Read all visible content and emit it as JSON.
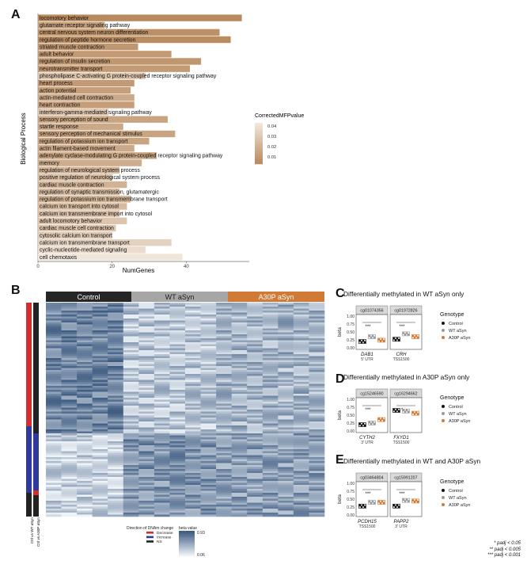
{
  "panels": {
    "a": "A",
    "b": "B",
    "c": "C",
    "d": "D",
    "e": "E"
  },
  "chart_data": [
    {
      "type": "bar",
      "panel": "A",
      "xlabel": "NumGenes",
      "ylabel": "Biological Process",
      "xticks": [
        "0",
        "20",
        "40"
      ],
      "xlim": [
        0,
        57
      ],
      "legend_title": "CorrectedMFPvalue",
      "legend_ticks": [
        "0.04",
        "0.03",
        "0.02",
        "0.01"
      ],
      "legend_placement": "right",
      "color_low": "#b98a5e",
      "color_high": "#f1e7dc",
      "categories": [
        "locomotory behavior",
        "glutamate receptor signaling pathway",
        "central nervous system neuron differentiation",
        "regulation of peptide hormone secretion",
        "striated muscle contraction",
        "adult behavior",
        "regulation of insulin secretion",
        "neurotransmitter transport",
        "phospholipase C-activating G protein-coupled receptor signaling pathway",
        "heart process",
        "action potential",
        "actin-mediated cell contraction",
        "heart contraction",
        "interferon-gamma-mediated signaling pathway",
        "sensory perception of sound",
        "startle response",
        "sensory perception of mechanical stimulus",
        "regulation of potassium ion transport",
        "actin filament-based movement",
        "adenylate cyclase-modulating G protein-coupled receptor signaling pathway",
        "memory",
        "regulation of neurological system process",
        "positive regulation of neurological system process",
        "cardiac muscle contraction",
        "regulation of synaptic transmission, glutamatergic",
        "regulation of potassium ion transmembrane transport",
        "calcium ion transport into cytosol",
        "calcium ion transmembrane import into cytosol",
        "adult locomotory behavior",
        "cardiac muscle cell contraction",
        "cytosolic calcium ion transport",
        "calcium ion transmembrane transport",
        "cyclic-nucleotide-mediated signaling",
        "cell chemotaxis"
      ],
      "values": [
        55,
        18,
        49,
        52,
        27,
        36,
        44,
        41,
        29,
        26,
        25,
        26,
        26,
        19,
        35,
        23,
        37,
        30,
        26,
        32,
        28,
        22,
        20,
        24,
        22,
        25,
        24,
        22,
        24,
        21,
        20,
        36,
        29,
        39
      ],
      "pvalues": [
        0.005,
        0.015,
        0.008,
        0.006,
        0.01,
        0.012,
        0.01,
        0.012,
        0.03,
        0.012,
        0.014,
        0.018,
        0.014,
        0.03,
        0.016,
        0.018,
        0.016,
        0.016,
        0.018,
        0.016,
        0.02,
        0.024,
        0.026,
        0.022,
        0.026,
        0.022,
        0.026,
        0.028,
        0.03,
        0.03,
        0.032,
        0.036,
        0.04,
        0.044
      ]
    },
    {
      "type": "heatmap",
      "panel": "B",
      "column_groups": [
        {
          "label": "Control",
          "color": "#262626"
        },
        {
          "label": "WT aSyn",
          "color": "#a6a6a6"
        },
        {
          "label": "A30P aSyn",
          "color": "#d07a36"
        }
      ],
      "row_annotations": [
        "Ctrl vs WT aSyn",
        "Ctrl vs A30P aSyn"
      ],
      "legend_direction_title": "Direction of DNAm change",
      "legend_direction_items": [
        {
          "label": "Decrease",
          "color": "#d32f2f"
        },
        {
          "label": "Increase",
          "color": "#2f3a9e"
        },
        {
          "label": "NS",
          "color": "#222222"
        }
      ],
      "legend_beta_title": "beta value",
      "beta_range": [
        "0.93",
        "0.06"
      ],
      "color_high": "#3c5a80",
      "color_low": "#eef3f8"
    },
    {
      "type": "box",
      "panel": "C",
      "title": "Differentially methylated in WT aSyn only",
      "ylabel": "beta",
      "yticks": [
        "1.00",
        "0.75",
        "0.50",
        "0.25",
        "0.00"
      ],
      "ylim": [
        0,
        1
      ],
      "facets": [
        {
          "probe": "cg01074356",
          "gene": "DAB1",
          "region": "5' UTR",
          "sig": "***",
          "medians": [
            0.2,
            0.35,
            0.24
          ]
        },
        {
          "probe": "cg01972826",
          "gene": "CRH",
          "region": "TSS1500",
          "sig": "***",
          "medians": [
            0.27,
            0.44,
            0.35
          ]
        }
      ]
    },
    {
      "type": "box",
      "panel": "D",
      "title": "Differentially methylated in A30P aSyn only",
      "ylabel": "beta",
      "yticks": [
        "1.00",
        "0.75",
        "0.50",
        "0.25",
        "0.00"
      ],
      "ylim": [
        0,
        1
      ],
      "facets": [
        {
          "probe": "cg15246590",
          "gene": "CYTH2",
          "region": "3' UTR",
          "sig": "***",
          "medians": [
            0.2,
            0.25,
            0.36
          ]
        },
        {
          "probe": "cg16294662",
          "gene": "FXYD1",
          "region": "TSS1500",
          "sig": "*",
          "medians": [
            0.65,
            0.63,
            0.56
          ]
        }
      ]
    },
    {
      "type": "box",
      "panel": "E",
      "title": "Differentially methylated in WT and A30P aSyn",
      "ylabel": "beta",
      "yticks": [
        "1.00",
        "0.75",
        "0.50",
        "0.25",
        "0.00"
      ],
      "ylim": [
        0,
        1
      ],
      "facets": [
        {
          "probe": "cg03464804",
          "gene": "PCDH15",
          "region": "TSS1500",
          "sig": "***",
          "medians": [
            0.28,
            0.4,
            0.4
          ]
        },
        {
          "probe": "cg15991207",
          "gene": "PAPP2",
          "region": "3' UTR",
          "sig": "***",
          "medians": [
            0.28,
            0.46,
            0.44
          ]
        }
      ]
    }
  ],
  "genotype_legend": {
    "title": "Genotype",
    "items": [
      {
        "label": "Control",
        "color": "#111111"
      },
      {
        "label": "WT aSyn",
        "color": "#9a9a9a"
      },
      {
        "label": "A30P aSyn",
        "color": "#d07a36"
      }
    ]
  },
  "significance_note": [
    "* padj < 0.05",
    "** padj < 0.005",
    "*** padj < 0.001"
  ]
}
